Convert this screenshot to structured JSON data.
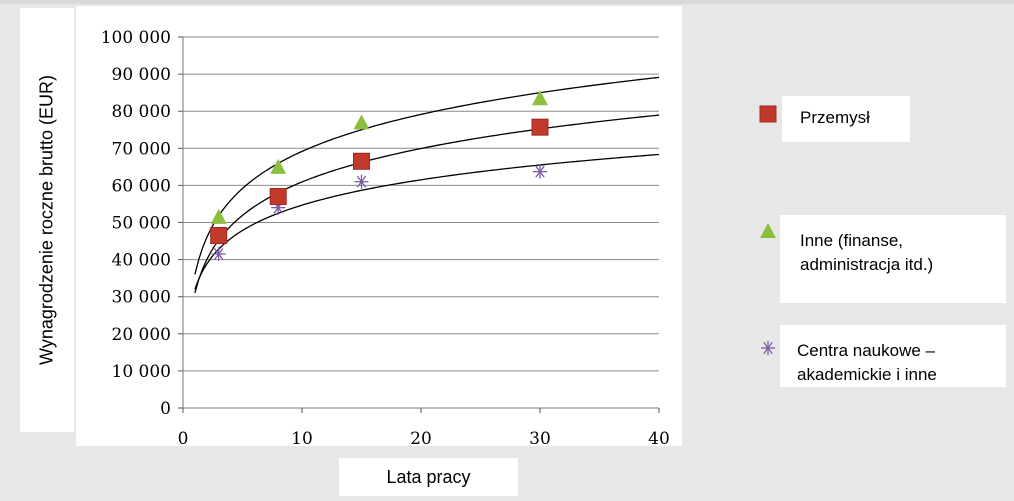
{
  "chart_data": {
    "type": "scatter",
    "xlabel": "Lata pracy",
    "ylabel": "Wynagrodzenie roczne brutto (EUR)",
    "xlim": [
      0,
      40
    ],
    "ylim": [
      0,
      100000
    ],
    "x_ticks": [
      0,
      10,
      20,
      30,
      40
    ],
    "x_tick_labels": [
      "0",
      "10",
      "20",
      "30",
      "40"
    ],
    "y_ticks": [
      0,
      10000,
      20000,
      30000,
      40000,
      50000,
      60000,
      70000,
      80000,
      90000,
      100000
    ],
    "y_tick_labels": [
      "0",
      "10 000",
      "20 000",
      "30 000",
      "40 000",
      "50 000",
      "60 000",
      "70 000",
      "80 000",
      "90 000",
      "100 000"
    ],
    "grid": "horizontal",
    "legend_position": "right",
    "series": [
      {
        "name": "Przemysł",
        "marker": "square",
        "color": "#c0392b",
        "x": [
          3,
          8,
          15,
          30
        ],
        "y": [
          46500,
          57000,
          66500,
          75700
        ],
        "trend": {
          "a": 31000,
          "b": 13000,
          "from": 1,
          "to": 40
        }
      },
      {
        "name": "Inne (finanse, administracja itd.)",
        "marker": "triangle",
        "color": "#8cbf3f",
        "x": [
          3,
          8,
          15,
          30
        ],
        "y": [
          51500,
          65000,
          77000,
          83500
        ],
        "trend": {
          "a": 36000,
          "b": 14400,
          "from": 1,
          "to": 40
        }
      },
      {
        "name": "Centra naukowe – akademickie i inne",
        "marker": "asterisk",
        "color": "#7d5ba6",
        "x": [
          3,
          8,
          15,
          30
        ],
        "y": [
          41500,
          54000,
          61000,
          63700
        ],
        "trend": {
          "a": 32000,
          "b": 9850,
          "from": 1,
          "to": 40
        }
      }
    ]
  },
  "legend": {
    "item1": "Przemysł",
    "item2_line1": "Inne (finanse,",
    "item2_line2": "administracja itd.)",
    "item3_line1": "Centra naukowe –",
    "item3_line2": "akademickie i inne"
  }
}
